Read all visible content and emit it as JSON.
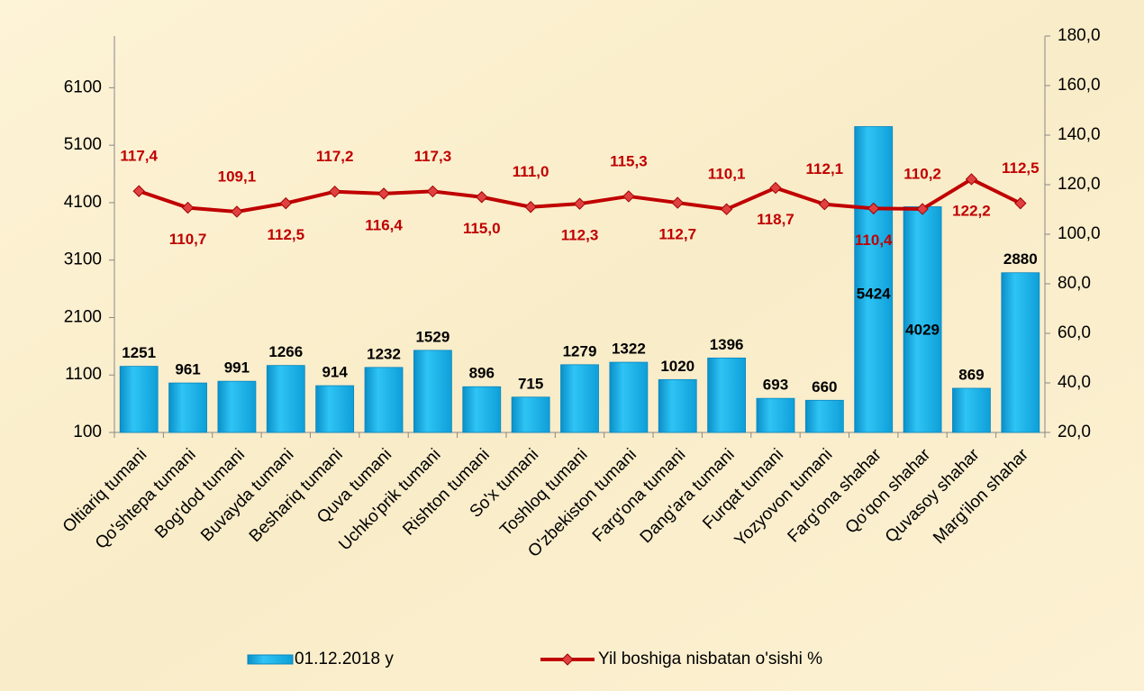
{
  "chart_data": {
    "type": "bar_line",
    "categories": [
      "Oltiariq tumani",
      "Qo'shtepa tumani",
      "Bog'dod tumani",
      "Buvayda tumani",
      "Beshariq tumani",
      "Quva tumani",
      "Uchko'prik tumani",
      "Rishton tumani",
      "So'x tumani",
      "Toshloq tumani",
      "O'zbekiston tumani",
      "Farg'ona tumani",
      "Dang'ara tumani",
      "Furqat tumani",
      "Yozyovon tumani",
      "Farg'ona shahar",
      "Qo'qon shahar",
      "Quvasoy shahar",
      "Marg'ilon shahar"
    ],
    "series": [
      {
        "name": "01.12.2018 y",
        "color": "#16aee6",
        "type": "bar",
        "values": [
          1251,
          961,
          991,
          1266,
          914,
          1232,
          1529,
          896,
          715,
          1279,
          1322,
          1020,
          1396,
          693,
          660,
          5424,
          4029,
          869,
          2880
        ]
      },
      {
        "name": "Yil boshiga nisbatan o'sishi %",
        "color": "#c00000",
        "type": "line",
        "axis": "y2",
        "values": [
          117.4,
          110.7,
          109.1,
          112.5,
          117.2,
          116.4,
          117.3,
          115.0,
          111.0,
          112.3,
          115.3,
          112.7,
          110.1,
          118.7,
          112.1,
          110.4,
          110.2,
          122.2,
          112.5
        ],
        "value_labels": [
          "117,4",
          "110,7",
          "109,1",
          "112,5",
          "117,2",
          "116,4",
          "117,3",
          "115,0",
          "111,0",
          "112,3",
          "115,3",
          "112,7",
          "110,1",
          "118,7",
          "112,1",
          "110,4",
          "110,2",
          "122,2",
          "112,5"
        ]
      }
    ],
    "ylim": [
      100,
      7000
    ],
    "yticks": [
      100,
      1100,
      2100,
      3100,
      4100,
      5100,
      6100
    ],
    "y2lim": [
      20,
      180
    ],
    "y2ticks": [
      {
        "value": 20,
        "label": "20,0"
      },
      {
        "value": 40,
        "label": "40,0"
      },
      {
        "value": 60,
        "label": "60,0"
      },
      {
        "value": 80,
        "label": "80,0"
      },
      {
        "value": 100,
        "label": "100,0"
      },
      {
        "value": 120,
        "label": "120,0"
      },
      {
        "value": 140,
        "label": "140,0"
      },
      {
        "value": 160,
        "label": "160,0"
      },
      {
        "value": 180,
        "label": "180,0"
      }
    ],
    "legend": "bottom"
  }
}
